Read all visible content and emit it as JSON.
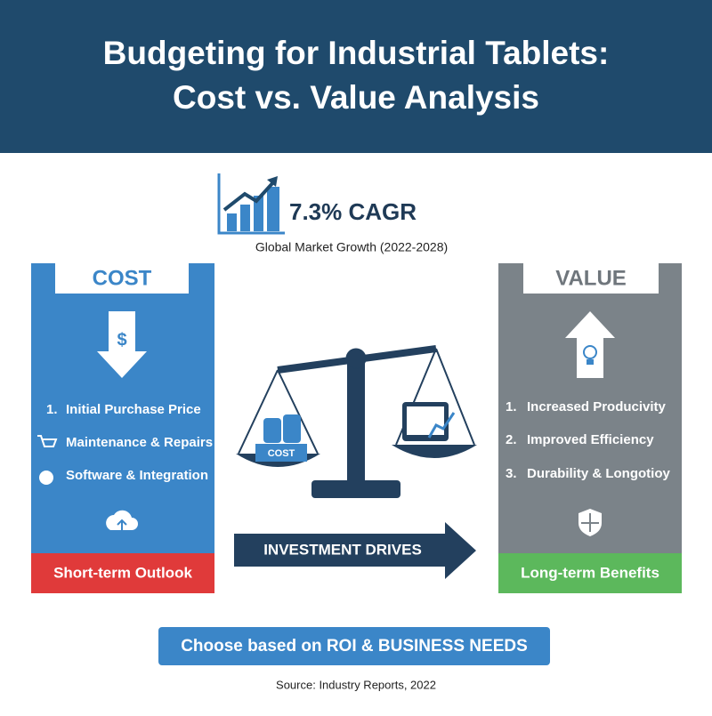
{
  "header": {
    "title": [
      "Budgeting for Industrial Tablets:",
      "Cost vs. Value Analysis"
    ]
  },
  "growth": {
    "stat": "7.3% CAGR",
    "caption": "Global Market Growth (2022-2028)"
  },
  "cost_panel": {
    "heading": "COST",
    "items": [
      {
        "marker": "1.",
        "label": "Initial Purchase Price"
      },
      {
        "label": "Maintenance & Repairs"
      },
      {
        "label": "Software & Integration"
      }
    ],
    "footer": "Short-term Outlook"
  },
  "scale": {
    "left_label": "COST"
  },
  "arrow": {
    "label": "INVESTMENT DRIVES"
  },
  "value_panel": {
    "heading": "VALUE",
    "items": [
      {
        "marker": "1.",
        "label": "Increased Producivity"
      },
      {
        "marker": "2.",
        "label": "Improved Efficiency"
      },
      {
        "marker": "3.",
        "label": "Durability & Longotioy"
      }
    ],
    "footer": "Long-term Benefits"
  },
  "banner": {
    "label": "Choose based on ROI & BUSINESS NEEDS"
  },
  "source": "Source: Industry Reports, 2022"
}
